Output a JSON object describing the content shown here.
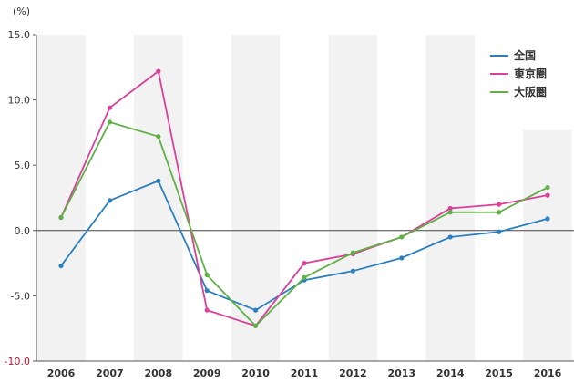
{
  "chart_data": {
    "type": "line",
    "unit_label": "(%)",
    "categories": [
      "2006",
      "2007",
      "2008",
      "2009",
      "2010",
      "2011",
      "2012",
      "2013",
      "2014",
      "2015",
      "2016"
    ],
    "yticks": [
      "15.0",
      "10.0",
      "5.0",
      "0.0",
      "-5.0",
      "-10.0"
    ],
    "ylim": [
      -10,
      15
    ],
    "grid": "alternating vertical bands",
    "legend_position": "top-right",
    "series": [
      {
        "name": "全国",
        "color": "#2a7fc0",
        "values": [
          -2.7,
          2.3,
          3.8,
          -4.6,
          -6.1,
          -3.8,
          -3.1,
          -2.1,
          -0.5,
          -0.1,
          0.9
        ]
      },
      {
        "name": "東京圏",
        "color": "#d9409a",
        "values": [
          1.0,
          9.4,
          12.2,
          -6.1,
          -7.3,
          -2.5,
          -1.8,
          -0.5,
          1.7,
          2.0,
          2.7
        ]
      },
      {
        "name": "大阪圏",
        "color": "#5fb045",
        "values": [
          1.0,
          8.3,
          7.2,
          -3.4,
          -7.3,
          -3.6,
          -1.7,
          -0.5,
          1.4,
          1.4,
          3.3
        ]
      }
    ]
  }
}
